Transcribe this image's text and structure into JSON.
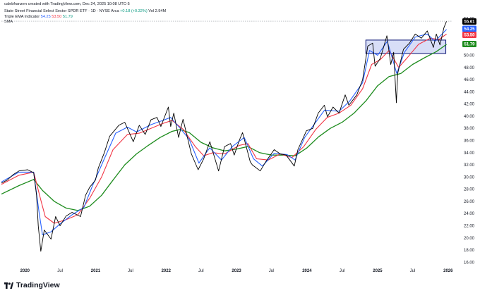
{
  "header": {
    "credit": "calebfranzen created with TradingView.com, Dec 24, 2025 10:08 UTC-5",
    "symbol_line": "State Street Financial Select Sector SPDR ETF · 1D · NYSE Arca",
    "change": "+0.18 (+0.32%)",
    "volume": "Vol 2.94M",
    "indicator_name": "Triple EMA Indicator",
    "ema_values": [
      "54.25",
      "53.50",
      "51.79"
    ],
    "sma_label": "SMA"
  },
  "price_tags": {
    "last": "55.61",
    "ema_fast": "54.25",
    "ema_mid": "53.50",
    "ema_slow": "51.79"
  },
  "footer": {
    "brand": "TradingView"
  },
  "colors": {
    "price": "#000000",
    "ema_fast": "#2962ff",
    "ema_mid": "#f23645",
    "ema_slow": "#1e8c1e",
    "zone_fill": "#b8c2f0",
    "zone_border": "#1a237e"
  },
  "chart_data": {
    "type": "line",
    "title": "State Street Financial Select Sector SPDR ETF · 1D · NYSE Arca",
    "x_axis": {
      "type": "time",
      "range": [
        "2019-09-01",
        "2026-01-20"
      ],
      "tick_labels": [
        "2020",
        "Jul",
        "2021",
        "Jul",
        "2022",
        "Jul",
        "2023",
        "Jul",
        "2024",
        "Jul",
        "2025",
        "Jul",
        "2026"
      ],
      "tick_dates": [
        "2020-01-01",
        "2020-07-01",
        "2021-01-01",
        "2021-07-01",
        "2022-01-01",
        "2022-07-01",
        "2023-01-01",
        "2023-07-01",
        "2024-01-01",
        "2024-07-01",
        "2025-01-01",
        "2025-07-01",
        "2026-01-01"
      ]
    },
    "y_axis": {
      "range": [
        15,
        57
      ],
      "ticks": [
        16,
        18,
        20,
        22,
        24,
        26,
        28,
        30,
        32,
        34,
        36,
        38,
        40,
        42,
        44,
        46,
        48,
        50,
        52,
        54,
        56
      ],
      "position": "right"
    },
    "grid": false,
    "legend": "top-left",
    "series": [
      {
        "name": "",
        "role": "price",
        "points": [
          [
            "2019-09-01",
            29.0
          ],
          [
            "2019-10-01",
            29.5
          ],
          [
            "2019-11-01",
            30.4
          ],
          [
            "2019-12-01",
            31.0
          ],
          [
            "2020-01-15",
            31.2
          ],
          [
            "2020-02-15",
            30.7
          ],
          [
            "2020-03-01",
            27.0
          ],
          [
            "2020-03-10",
            22.0
          ],
          [
            "2020-03-23",
            17.8
          ],
          [
            "2020-04-10",
            21.3
          ],
          [
            "2020-05-15",
            19.8
          ],
          [
            "2020-06-08",
            23.5
          ],
          [
            "2020-07-01",
            22.0
          ],
          [
            "2020-08-01",
            23.6
          ],
          [
            "2020-09-01",
            24.2
          ],
          [
            "2020-10-15",
            23.5
          ],
          [
            "2020-11-10",
            27.0
          ],
          [
            "2020-12-01",
            28.3
          ],
          [
            "2020-12-31",
            29.5
          ],
          [
            "2021-01-15",
            31.5
          ],
          [
            "2021-02-15",
            34.0
          ],
          [
            "2021-03-15",
            36.7
          ],
          [
            "2021-05-01",
            38.5
          ],
          [
            "2021-06-01",
            39.0
          ],
          [
            "2021-07-15",
            35.8
          ],
          [
            "2021-08-15",
            38.5
          ],
          [
            "2021-09-15",
            37.0
          ],
          [
            "2021-10-15",
            39.4
          ],
          [
            "2021-11-15",
            39.8
          ],
          [
            "2021-12-05",
            38.3
          ],
          [
            "2022-01-13",
            41.5
          ],
          [
            "2022-01-25",
            38.3
          ],
          [
            "2022-02-10",
            40.5
          ],
          [
            "2022-03-07",
            36.5
          ],
          [
            "2022-03-30",
            39.5
          ],
          [
            "2022-05-12",
            33.8
          ],
          [
            "2022-06-16",
            31.2
          ],
          [
            "2022-07-15",
            33.0
          ],
          [
            "2022-08-16",
            35.8
          ],
          [
            "2022-09-30",
            31.0
          ],
          [
            "2022-10-31",
            35.0
          ],
          [
            "2022-12-01",
            35.5
          ],
          [
            "2022-12-20",
            33.6
          ],
          [
            "2023-01-15",
            36.0
          ],
          [
            "2023-02-01",
            37.3
          ],
          [
            "2023-03-13",
            32.5
          ],
          [
            "2023-03-24",
            32.0
          ],
          [
            "2023-05-04",
            31.0
          ],
          [
            "2023-06-01",
            32.5
          ],
          [
            "2023-07-15",
            34.5
          ],
          [
            "2023-08-15",
            33.8
          ],
          [
            "2023-09-15",
            33.6
          ],
          [
            "2023-10-27",
            31.8
          ],
          [
            "2023-11-15",
            34.5
          ],
          [
            "2023-12-29",
            37.6
          ],
          [
            "2024-01-31",
            38.0
          ],
          [
            "2024-02-28",
            40.5
          ],
          [
            "2024-03-31",
            41.8
          ],
          [
            "2024-04-16",
            39.9
          ],
          [
            "2024-05-15",
            41.5
          ],
          [
            "2024-06-15",
            40.5
          ],
          [
            "2024-07-17",
            43.5
          ],
          [
            "2024-08-05",
            41.8
          ],
          [
            "2024-09-15",
            43.5
          ],
          [
            "2024-10-15",
            46.0
          ],
          [
            "2024-11-11",
            51.5
          ],
          [
            "2024-12-06",
            52.0
          ],
          [
            "2024-12-19",
            48.2
          ],
          [
            "2025-01-15",
            49.5
          ],
          [
            "2025-02-18",
            53.2
          ],
          [
            "2025-03-10",
            48.5
          ],
          [
            "2025-03-25",
            50.5
          ],
          [
            "2025-04-08",
            42.2
          ],
          [
            "2025-04-15",
            47.0
          ],
          [
            "2025-05-15",
            51.0
          ],
          [
            "2025-06-15",
            52.0
          ],
          [
            "2025-07-15",
            53.5
          ],
          [
            "2025-08-15",
            52.8
          ],
          [
            "2025-09-15",
            54.0
          ],
          [
            "2025-10-17",
            51.3
          ],
          [
            "2025-11-01",
            53.5
          ],
          [
            "2025-11-20",
            51.7
          ],
          [
            "2025-12-10",
            54.5
          ],
          [
            "2025-12-24",
            55.6
          ]
        ]
      },
      {
        "name": "",
        "role": "ema_fast",
        "points": [
          [
            "2019-09-01",
            29.2
          ],
          [
            "2019-12-01",
            30.8
          ],
          [
            "2020-02-15",
            30.8
          ],
          [
            "2020-03-15",
            24.0
          ],
          [
            "2020-04-01",
            20.5
          ],
          [
            "2020-05-15",
            21.0
          ],
          [
            "2020-07-01",
            22.3
          ],
          [
            "2020-09-01",
            23.8
          ],
          [
            "2020-11-01",
            25.0
          ],
          [
            "2020-12-15",
            28.5
          ],
          [
            "2021-02-15",
            33.0
          ],
          [
            "2021-04-15",
            37.2
          ],
          [
            "2021-06-15",
            38.2
          ],
          [
            "2021-08-01",
            37.4
          ],
          [
            "2021-10-15",
            38.6
          ],
          [
            "2021-12-15",
            39.3
          ],
          [
            "2022-01-25",
            39.8
          ],
          [
            "2022-03-15",
            38.0
          ],
          [
            "2022-05-01",
            36.2
          ],
          [
            "2022-06-20",
            32.3
          ],
          [
            "2022-08-15",
            34.8
          ],
          [
            "2022-10-15",
            32.8
          ],
          [
            "2022-12-10",
            35.0
          ],
          [
            "2023-02-10",
            36.5
          ],
          [
            "2023-03-30",
            33.0
          ],
          [
            "2023-05-15",
            31.8
          ],
          [
            "2023-07-15",
            33.9
          ],
          [
            "2023-09-20",
            33.7
          ],
          [
            "2023-10-31",
            32.8
          ],
          [
            "2023-12-20",
            36.5
          ],
          [
            "2024-02-15",
            39.0
          ],
          [
            "2024-04-01",
            41.0
          ],
          [
            "2024-06-15",
            40.8
          ],
          [
            "2024-08-10",
            42.5
          ],
          [
            "2024-10-15",
            45.5
          ],
          [
            "2024-11-20",
            50.8
          ],
          [
            "2025-01-01",
            50.0
          ],
          [
            "2025-02-20",
            52.3
          ],
          [
            "2025-04-10",
            47.0
          ],
          [
            "2025-05-20",
            50.5
          ],
          [
            "2025-07-15",
            53.0
          ],
          [
            "2025-09-15",
            53.5
          ],
          [
            "2025-10-25",
            52.3
          ],
          [
            "2025-12-24",
            54.25
          ]
        ]
      },
      {
        "name": "",
        "role": "ema_mid",
        "points": [
          [
            "2019-09-01",
            28.8
          ],
          [
            "2019-12-01",
            30.3
          ],
          [
            "2020-02-15",
            30.8
          ],
          [
            "2020-03-25",
            26.0
          ],
          [
            "2020-04-15",
            23.5
          ],
          [
            "2020-06-01",
            22.4
          ],
          [
            "2020-08-01",
            23.0
          ],
          [
            "2020-10-01",
            23.8
          ],
          [
            "2020-12-01",
            26.5
          ],
          [
            "2021-02-01",
            30.0
          ],
          [
            "2021-04-01",
            34.5
          ],
          [
            "2021-06-15",
            37.0
          ],
          [
            "2021-08-15",
            37.2
          ],
          [
            "2021-10-15",
            38.0
          ],
          [
            "2021-12-15",
            38.8
          ],
          [
            "2022-02-01",
            39.3
          ],
          [
            "2022-04-01",
            37.8
          ],
          [
            "2022-06-01",
            35.0
          ],
          [
            "2022-07-15",
            33.5
          ],
          [
            "2022-09-01",
            34.0
          ],
          [
            "2022-11-01",
            33.8
          ],
          [
            "2023-01-15",
            35.2
          ],
          [
            "2023-03-01",
            35.5
          ],
          [
            "2023-04-15",
            33.0
          ],
          [
            "2023-06-15",
            32.8
          ],
          [
            "2023-08-15",
            33.8
          ],
          [
            "2023-10-15",
            33.2
          ],
          [
            "2023-12-15",
            35.0
          ],
          [
            "2024-02-15",
            37.8
          ],
          [
            "2024-04-15",
            39.8
          ],
          [
            "2024-06-15",
            40.5
          ],
          [
            "2024-08-15",
            41.8
          ],
          [
            "2024-10-15",
            44.5
          ],
          [
            "2024-12-01",
            48.5
          ],
          [
            "2025-01-15",
            49.3
          ],
          [
            "2025-03-01",
            50.8
          ],
          [
            "2025-04-20",
            48.0
          ],
          [
            "2025-06-01",
            49.5
          ],
          [
            "2025-08-01",
            51.8
          ],
          [
            "2025-10-01",
            52.8
          ],
          [
            "2025-11-15",
            52.6
          ],
          [
            "2025-12-24",
            53.5
          ]
        ]
      },
      {
        "name": "",
        "role": "ema_slow",
        "points": [
          [
            "2019-09-01",
            27.2
          ],
          [
            "2019-12-01",
            28.6
          ],
          [
            "2020-02-15",
            29.6
          ],
          [
            "2020-04-01",
            27.8
          ],
          [
            "2020-06-01",
            26.0
          ],
          [
            "2020-08-01",
            24.9
          ],
          [
            "2020-10-01",
            24.5
          ],
          [
            "2020-12-01",
            25.2
          ],
          [
            "2021-02-01",
            27.0
          ],
          [
            "2021-04-01",
            29.5
          ],
          [
            "2021-06-01",
            32.0
          ],
          [
            "2021-08-01",
            33.8
          ],
          [
            "2021-10-01",
            35.2
          ],
          [
            "2021-12-01",
            36.5
          ],
          [
            "2022-02-01",
            37.5
          ],
          [
            "2022-03-15",
            37.8
          ],
          [
            "2022-05-01",
            37.3
          ],
          [
            "2022-07-01",
            35.7
          ],
          [
            "2022-09-01",
            34.8
          ],
          [
            "2022-11-01",
            34.3
          ],
          [
            "2023-01-01",
            34.6
          ],
          [
            "2023-03-01",
            35.0
          ],
          [
            "2023-05-01",
            34.0
          ],
          [
            "2023-07-01",
            33.6
          ],
          [
            "2023-09-01",
            33.6
          ],
          [
            "2023-11-01",
            33.5
          ],
          [
            "2024-01-01",
            34.8
          ],
          [
            "2024-03-01",
            36.6
          ],
          [
            "2024-05-01",
            38.0
          ],
          [
            "2024-07-01",
            39.0
          ],
          [
            "2024-09-01",
            40.5
          ],
          [
            "2024-11-01",
            42.5
          ],
          [
            "2025-01-01",
            45.0
          ],
          [
            "2025-03-01",
            46.5
          ],
          [
            "2025-05-01",
            47.0
          ],
          [
            "2025-07-01",
            48.5
          ],
          [
            "2025-09-01",
            49.6
          ],
          [
            "2025-11-01",
            50.6
          ],
          [
            "2025-12-24",
            51.79
          ]
        ]
      }
    ],
    "annotations": [
      {
        "type": "rectangle",
        "x": [
          "2024-11-01",
          "2025-12-20"
        ],
        "y": [
          50.3,
          52.5
        ]
      }
    ]
  }
}
